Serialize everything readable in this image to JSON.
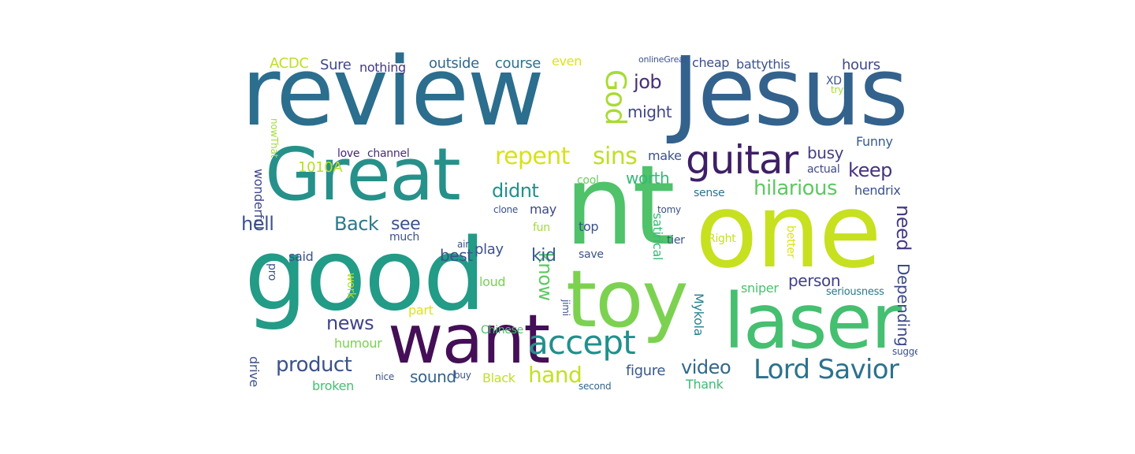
{
  "words": [
    {
      "text": "review",
      "color": "#2b6e8e"
    },
    {
      "text": "Jesus",
      "color": "#33628d"
    },
    {
      "text": "Great",
      "color": "#26918a"
    },
    {
      "text": "nt",
      "color": "#4fc26a"
    },
    {
      "text": "one",
      "color": "#c7e020"
    },
    {
      "text": "good",
      "color": "#229b87"
    },
    {
      "text": "toy",
      "color": "#7cd250"
    },
    {
      "text": "laser",
      "color": "#45bf70"
    },
    {
      "text": "want",
      "color": "#440f56"
    },
    {
      "text": "accept",
      "color": "#21908d"
    },
    {
      "text": "guitar",
      "color": "#3e1f66"
    },
    {
      "text": "Lord Savior",
      "color": "#2c728e"
    },
    {
      "text": "God",
      "color": "#a8db34"
    },
    {
      "text": "repent",
      "color": "#d7e219"
    },
    {
      "text": "sins",
      "color": "#c0df25"
    },
    {
      "text": "hilarious",
      "color": "#5ec962"
    },
    {
      "text": "video",
      "color": "#31688e"
    },
    {
      "text": "product",
      "color": "#3b528b"
    },
    {
      "text": "know",
      "color": "#5ec962"
    },
    {
      "text": "keep",
      "color": "#46337f"
    },
    {
      "text": "hand",
      "color": "#c5e021"
    },
    {
      "text": "news",
      "color": "#414487"
    },
    {
      "text": "didnt",
      "color": "#21908d"
    },
    {
      "text": "Back",
      "color": "#2a788e"
    },
    {
      "text": "need",
      "color": "#443a83"
    },
    {
      "text": "kid",
      "color": "#355f8d"
    },
    {
      "text": "hell",
      "color": "#3b528b"
    },
    {
      "text": "job",
      "color": "#472c7a"
    },
    {
      "text": "Depending",
      "color": "#3e4a89"
    },
    {
      "text": "see",
      "color": "#3b528b"
    },
    {
      "text": "1010A",
      "color": "#b8de29"
    },
    {
      "text": "sound",
      "color": "#33638d"
    },
    {
      "text": "best",
      "color": "#3b528b"
    },
    {
      "text": "busy",
      "color": "#433e85"
    },
    {
      "text": "might",
      "color": "#404688"
    },
    {
      "text": "worth",
      "color": "#35b779"
    },
    {
      "text": "person",
      "color": "#424186"
    },
    {
      "text": "figure",
      "color": "#38598c"
    },
    {
      "text": "hours",
      "color": "#3e4989"
    },
    {
      "text": "outside",
      "color": "#31688e"
    },
    {
      "text": "course",
      "color": "#2c728e"
    },
    {
      "text": "ACDC",
      "color": "#bddf26"
    },
    {
      "text": "Sure",
      "color": "#3f4788"
    },
    {
      "text": "nothing",
      "color": "#453781"
    },
    {
      "text": "cheap",
      "color": "#3d4e8a"
    },
    {
      "text": "battythis",
      "color": "#3b528b"
    },
    {
      "text": "wonderful",
      "color": "#3f4889"
    },
    {
      "text": "even",
      "color": "#dde318"
    },
    {
      "text": "play",
      "color": "#3b528b"
    },
    {
      "text": "may",
      "color": "#3f4788"
    },
    {
      "text": "Black",
      "color": "#c2df23"
    },
    {
      "text": "humour",
      "color": "#7ad151"
    },
    {
      "text": "Thank",
      "color": "#3dbc74"
    },
    {
      "text": "drive",
      "color": "#3b528b"
    },
    {
      "text": "broken",
      "color": "#44bf70"
    },
    {
      "text": "Mykola",
      "color": "#26828e"
    },
    {
      "text": "hendrix",
      "color": "#3b528b"
    },
    {
      "text": "said",
      "color": "#3b528b"
    },
    {
      "text": "love",
      "color": "#482374"
    },
    {
      "text": "channel",
      "color": "#472d7b"
    },
    {
      "text": "sniper",
      "color": "#4ac16d"
    },
    {
      "text": "part",
      "color": "#dde318"
    },
    {
      "text": "make",
      "color": "#3b528b"
    },
    {
      "text": "satirical",
      "color": "#3aba76"
    },
    {
      "text": "Funny",
      "color": "#365c8d"
    },
    {
      "text": "sense",
      "color": "#2c728e"
    },
    {
      "text": "actual",
      "color": "#3e4a89"
    },
    {
      "text": "seriousness",
      "color": "#2a788e"
    },
    {
      "text": "save",
      "color": "#3b528b"
    },
    {
      "text": "top",
      "color": "#3b528b"
    },
    {
      "text": "fun",
      "color": "#a0da39"
    },
    {
      "text": "loud",
      "color": "#7ad151"
    },
    {
      "text": "much",
      "color": "#3b528b"
    },
    {
      "text": "Chinese",
      "color": "#4ac16d"
    },
    {
      "text": "second",
      "color": "#32648e"
    },
    {
      "text": "cool",
      "color": "#6ccd5a"
    },
    {
      "text": "Right",
      "color": "#c8e020"
    },
    {
      "text": "better",
      "color": "#dde318"
    },
    {
      "text": "tier",
      "color": "#3b528b"
    },
    {
      "text": "XD",
      "color": "#3b528b"
    },
    {
      "text": "nowThat",
      "color": "#9fda3a"
    },
    {
      "text": "pro",
      "color": "#3b528b"
    },
    {
      "text": "work",
      "color": "#b5de2b"
    },
    {
      "text": "nice",
      "color": "#3b528b"
    },
    {
      "text": "buy",
      "color": "#3b528b"
    },
    {
      "text": "jimi",
      "color": "#3b528b"
    },
    {
      "text": "clone",
      "color": "#3b528b"
    },
    {
      "text": "tomy",
      "color": "#3b528b"
    },
    {
      "text": "air",
      "color": "#3b528b"
    },
    {
      "text": "suggest",
      "color": "#3b528b"
    },
    {
      "text": "onlineGreat",
      "color": "#3b528b"
    },
    {
      "text": "try",
      "color": "#a0da39"
    }
  ],
  "colors": {
    "background": "#ffffff"
  }
}
